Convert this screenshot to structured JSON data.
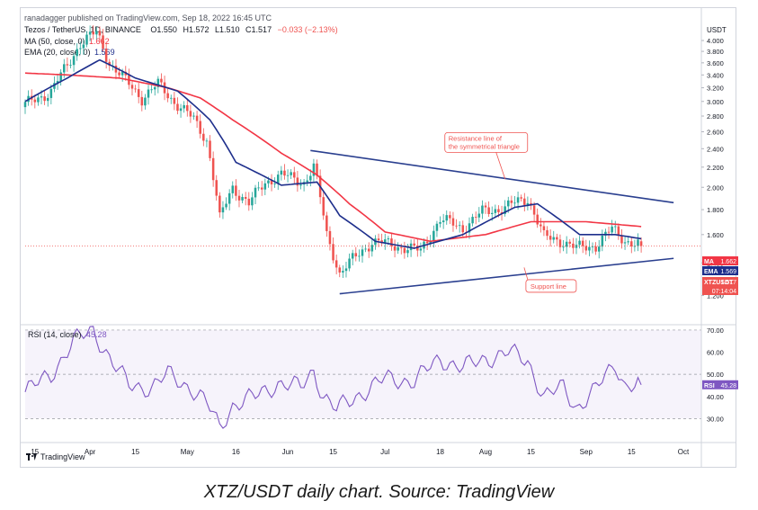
{
  "header": {
    "publisher": "ranadagger published on TradingView.com, Sep 18, 2022 16:45 UTC"
  },
  "legend": {
    "symbol": "Tezos / TetherUS, 1D, BINANCE",
    "open": "O1.550",
    "high": "H1.572",
    "low": "L1.510",
    "close": "C1.517",
    "change": "−0.033 (−2.13%)",
    "ma_label": "MA (50, close, 0)",
    "ma_value": "1.662",
    "ema_label": "EMA (20, close, 0)",
    "ema_value": "1.569"
  },
  "rsi_panel": {
    "label": "RSI (14, close)",
    "value": "45.28"
  },
  "price_tags": {
    "ma_name": "MA",
    "ma_value": "1.662",
    "ma_color": "#f23645",
    "ema_name": "EMA",
    "ema_value": "1.569",
    "ema_color": "#1e2f8c",
    "symbol_name": "XTZUSDT",
    "symbol_value": "1.517",
    "countdown": "07:14:04",
    "symbol_color": "#ef5350",
    "rsi_name": "RSI",
    "rsi_value": "45.28",
    "rsi_color": "#7e57c2"
  },
  "annotations": {
    "resistance": "Resistance line of\nthe symmetrical triangle",
    "support": "Support line"
  },
  "branding": {
    "logo_text": "TradingView"
  },
  "caption": "XTZ/USDT daily chart. Source: TradingView",
  "chart_data": [
    {
      "type": "candlestick",
      "title": "Tezos / TetherUS, 1D, BINANCE",
      "currency": "USDT",
      "y_ticks": [
        1.2,
        1.4,
        1.6,
        1.8,
        2.0,
        2.2,
        2.4,
        2.6,
        2.8,
        3.0,
        3.2,
        3.4,
        3.6,
        3.8,
        4.0
      ],
      "y_tick_labels": [
        "1.200",
        "1.400",
        "1.600",
        "1.800",
        "2.000",
        "2.200",
        "2.400",
        "2.600",
        "2.800",
        "3.000",
        "3.200",
        "3.400",
        "3.600",
        "3.800",
        "4.000"
      ],
      "ylim": [
        1.05,
        4.3
      ],
      "scale": "log",
      "x_tick_labels": [
        "15",
        "Apr",
        "15",
        "May",
        "16",
        "Jun",
        "15",
        "Jul",
        "18",
        "Aug",
        "15",
        "Sep",
        "15",
        "Oct"
      ],
      "x_tick_dates": [
        "2022-03-15",
        "2022-04-01",
        "2022-04-15",
        "2022-05-01",
        "2022-05-16",
        "2022-06-01",
        "2022-06-15",
        "2022-07-01",
        "2022-07-18",
        "2022-08-01",
        "2022-08-15",
        "2022-09-01",
        "2022-09-15",
        "2022-10-01"
      ],
      "x_range": [
        "2022-03-12",
        "2022-10-06"
      ],
      "close_keypoints": [
        [
          "2022-03-12",
          2.95
        ],
        [
          "2022-03-20",
          3.15
        ],
        [
          "2022-03-25",
          3.55
        ],
        [
          "2022-03-29",
          3.95
        ],
        [
          "2022-04-03",
          4.15
        ],
        [
          "2022-04-07",
          3.6
        ],
        [
          "2022-04-12",
          3.3
        ],
        [
          "2022-04-17",
          3.05
        ],
        [
          "2022-04-22",
          3.25
        ],
        [
          "2022-04-27",
          3.0
        ],
        [
          "2022-05-03",
          2.75
        ],
        [
          "2022-05-07",
          2.5
        ],
        [
          "2022-05-11",
          1.72
        ],
        [
          "2022-05-15",
          2.0
        ],
        [
          "2022-05-20",
          1.85
        ],
        [
          "2022-05-25",
          2.05
        ],
        [
          "2022-05-30",
          2.12
        ],
        [
          "2022-06-06",
          2.05
        ],
        [
          "2022-06-09",
          2.2
        ],
        [
          "2022-06-13",
          1.6
        ],
        [
          "2022-06-17",
          1.33
        ],
        [
          "2022-06-21",
          1.42
        ],
        [
          "2022-06-27",
          1.55
        ],
        [
          "2022-07-04",
          1.52
        ],
        [
          "2022-07-12",
          1.48
        ],
        [
          "2022-07-18",
          1.72
        ],
        [
          "2022-07-25",
          1.65
        ],
        [
          "2022-07-31",
          1.78
        ],
        [
          "2022-08-07",
          1.82
        ],
        [
          "2022-08-14",
          1.9
        ],
        [
          "2022-08-19",
          1.58
        ],
        [
          "2022-08-25",
          1.55
        ],
        [
          "2022-08-29",
          1.5
        ],
        [
          "2022-09-04",
          1.52
        ],
        [
          "2022-09-09",
          1.64
        ],
        [
          "2022-09-13",
          1.56
        ],
        [
          "2022-09-18",
          1.517
        ]
      ],
      "ma_50_keypoints": [
        [
          "2022-03-12",
          3.43
        ],
        [
          "2022-03-25",
          3.4
        ],
        [
          "2022-04-10",
          3.35
        ],
        [
          "2022-04-25",
          3.2
        ],
        [
          "2022-05-05",
          3.05
        ],
        [
          "2022-05-15",
          2.75
        ],
        [
          "2022-05-30",
          2.35
        ],
        [
          "2022-06-10",
          2.12
        ],
        [
          "2022-06-20",
          1.85
        ],
        [
          "2022-07-01",
          1.62
        ],
        [
          "2022-07-15",
          1.55
        ],
        [
          "2022-08-01",
          1.6
        ],
        [
          "2022-08-15",
          1.7
        ],
        [
          "2022-09-01",
          1.7
        ],
        [
          "2022-09-18",
          1.662
        ]
      ],
      "ema_20_keypoints": [
        [
          "2022-03-12",
          3.0
        ],
        [
          "2022-03-25",
          3.35
        ],
        [
          "2022-04-04",
          3.65
        ],
        [
          "2022-04-15",
          3.35
        ],
        [
          "2022-04-28",
          3.15
        ],
        [
          "2022-05-08",
          2.75
        ],
        [
          "2022-05-16",
          2.25
        ],
        [
          "2022-05-30",
          2.02
        ],
        [
          "2022-06-10",
          2.05
        ],
        [
          "2022-06-17",
          1.75
        ],
        [
          "2022-06-28",
          1.55
        ],
        [
          "2022-07-10",
          1.5
        ],
        [
          "2022-07-25",
          1.6
        ],
        [
          "2022-08-10",
          1.82
        ],
        [
          "2022-08-17",
          1.85
        ],
        [
          "2022-08-30",
          1.6
        ],
        [
          "2022-09-10",
          1.6
        ],
        [
          "2022-09-18",
          1.569
        ]
      ],
      "resistance_line": [
        [
          "2022-06-08",
          2.38
        ],
        [
          "2022-09-28",
          1.86
        ]
      ],
      "support_line": [
        [
          "2022-06-17",
          1.21
        ],
        [
          "2022-09-28",
          1.43
        ]
      ]
    },
    {
      "type": "line",
      "title": "RSI (14, close)",
      "y_ticks": [
        30,
        40,
        50,
        60,
        70
      ],
      "y_tick_labels": [
        "30.00",
        "40.00",
        "50.00",
        "60.00",
        "70.00"
      ],
      "overbought": 70,
      "oversold": 30,
      "midline": 50,
      "ylim": [
        20,
        72
      ],
      "keypoints": [
        [
          "2022-03-12",
          42
        ],
        [
          "2022-03-20",
          50
        ],
        [
          "2022-03-27",
          65
        ],
        [
          "2022-04-02",
          70
        ],
        [
          "2022-04-08",
          55
        ],
        [
          "2022-04-13",
          45
        ],
        [
          "2022-04-20",
          44
        ],
        [
          "2022-04-25",
          50
        ],
        [
          "2022-05-02",
          44
        ],
        [
          "2022-05-07",
          37
        ],
        [
          "2022-05-11",
          26
        ],
        [
          "2022-05-15",
          36
        ],
        [
          "2022-05-22",
          40
        ],
        [
          "2022-05-29",
          46
        ],
        [
          "2022-06-05",
          44
        ],
        [
          "2022-06-09",
          52
        ],
        [
          "2022-06-12",
          40
        ],
        [
          "2022-06-16",
          34
        ],
        [
          "2022-06-22",
          40
        ],
        [
          "2022-07-01",
          48
        ],
        [
          "2022-07-10",
          47
        ],
        [
          "2022-07-18",
          57
        ],
        [
          "2022-07-25",
          53
        ],
        [
          "2022-08-01",
          57
        ],
        [
          "2022-08-08",
          60
        ],
        [
          "2022-08-14",
          56
        ],
        [
          "2022-08-19",
          40
        ],
        [
          "2022-08-25",
          44
        ],
        [
          "2022-08-29",
          35
        ],
        [
          "2022-09-04",
          43
        ],
        [
          "2022-09-10",
          55
        ],
        [
          "2022-09-13",
          45
        ],
        [
          "2022-09-18",
          45.28
        ]
      ]
    }
  ]
}
